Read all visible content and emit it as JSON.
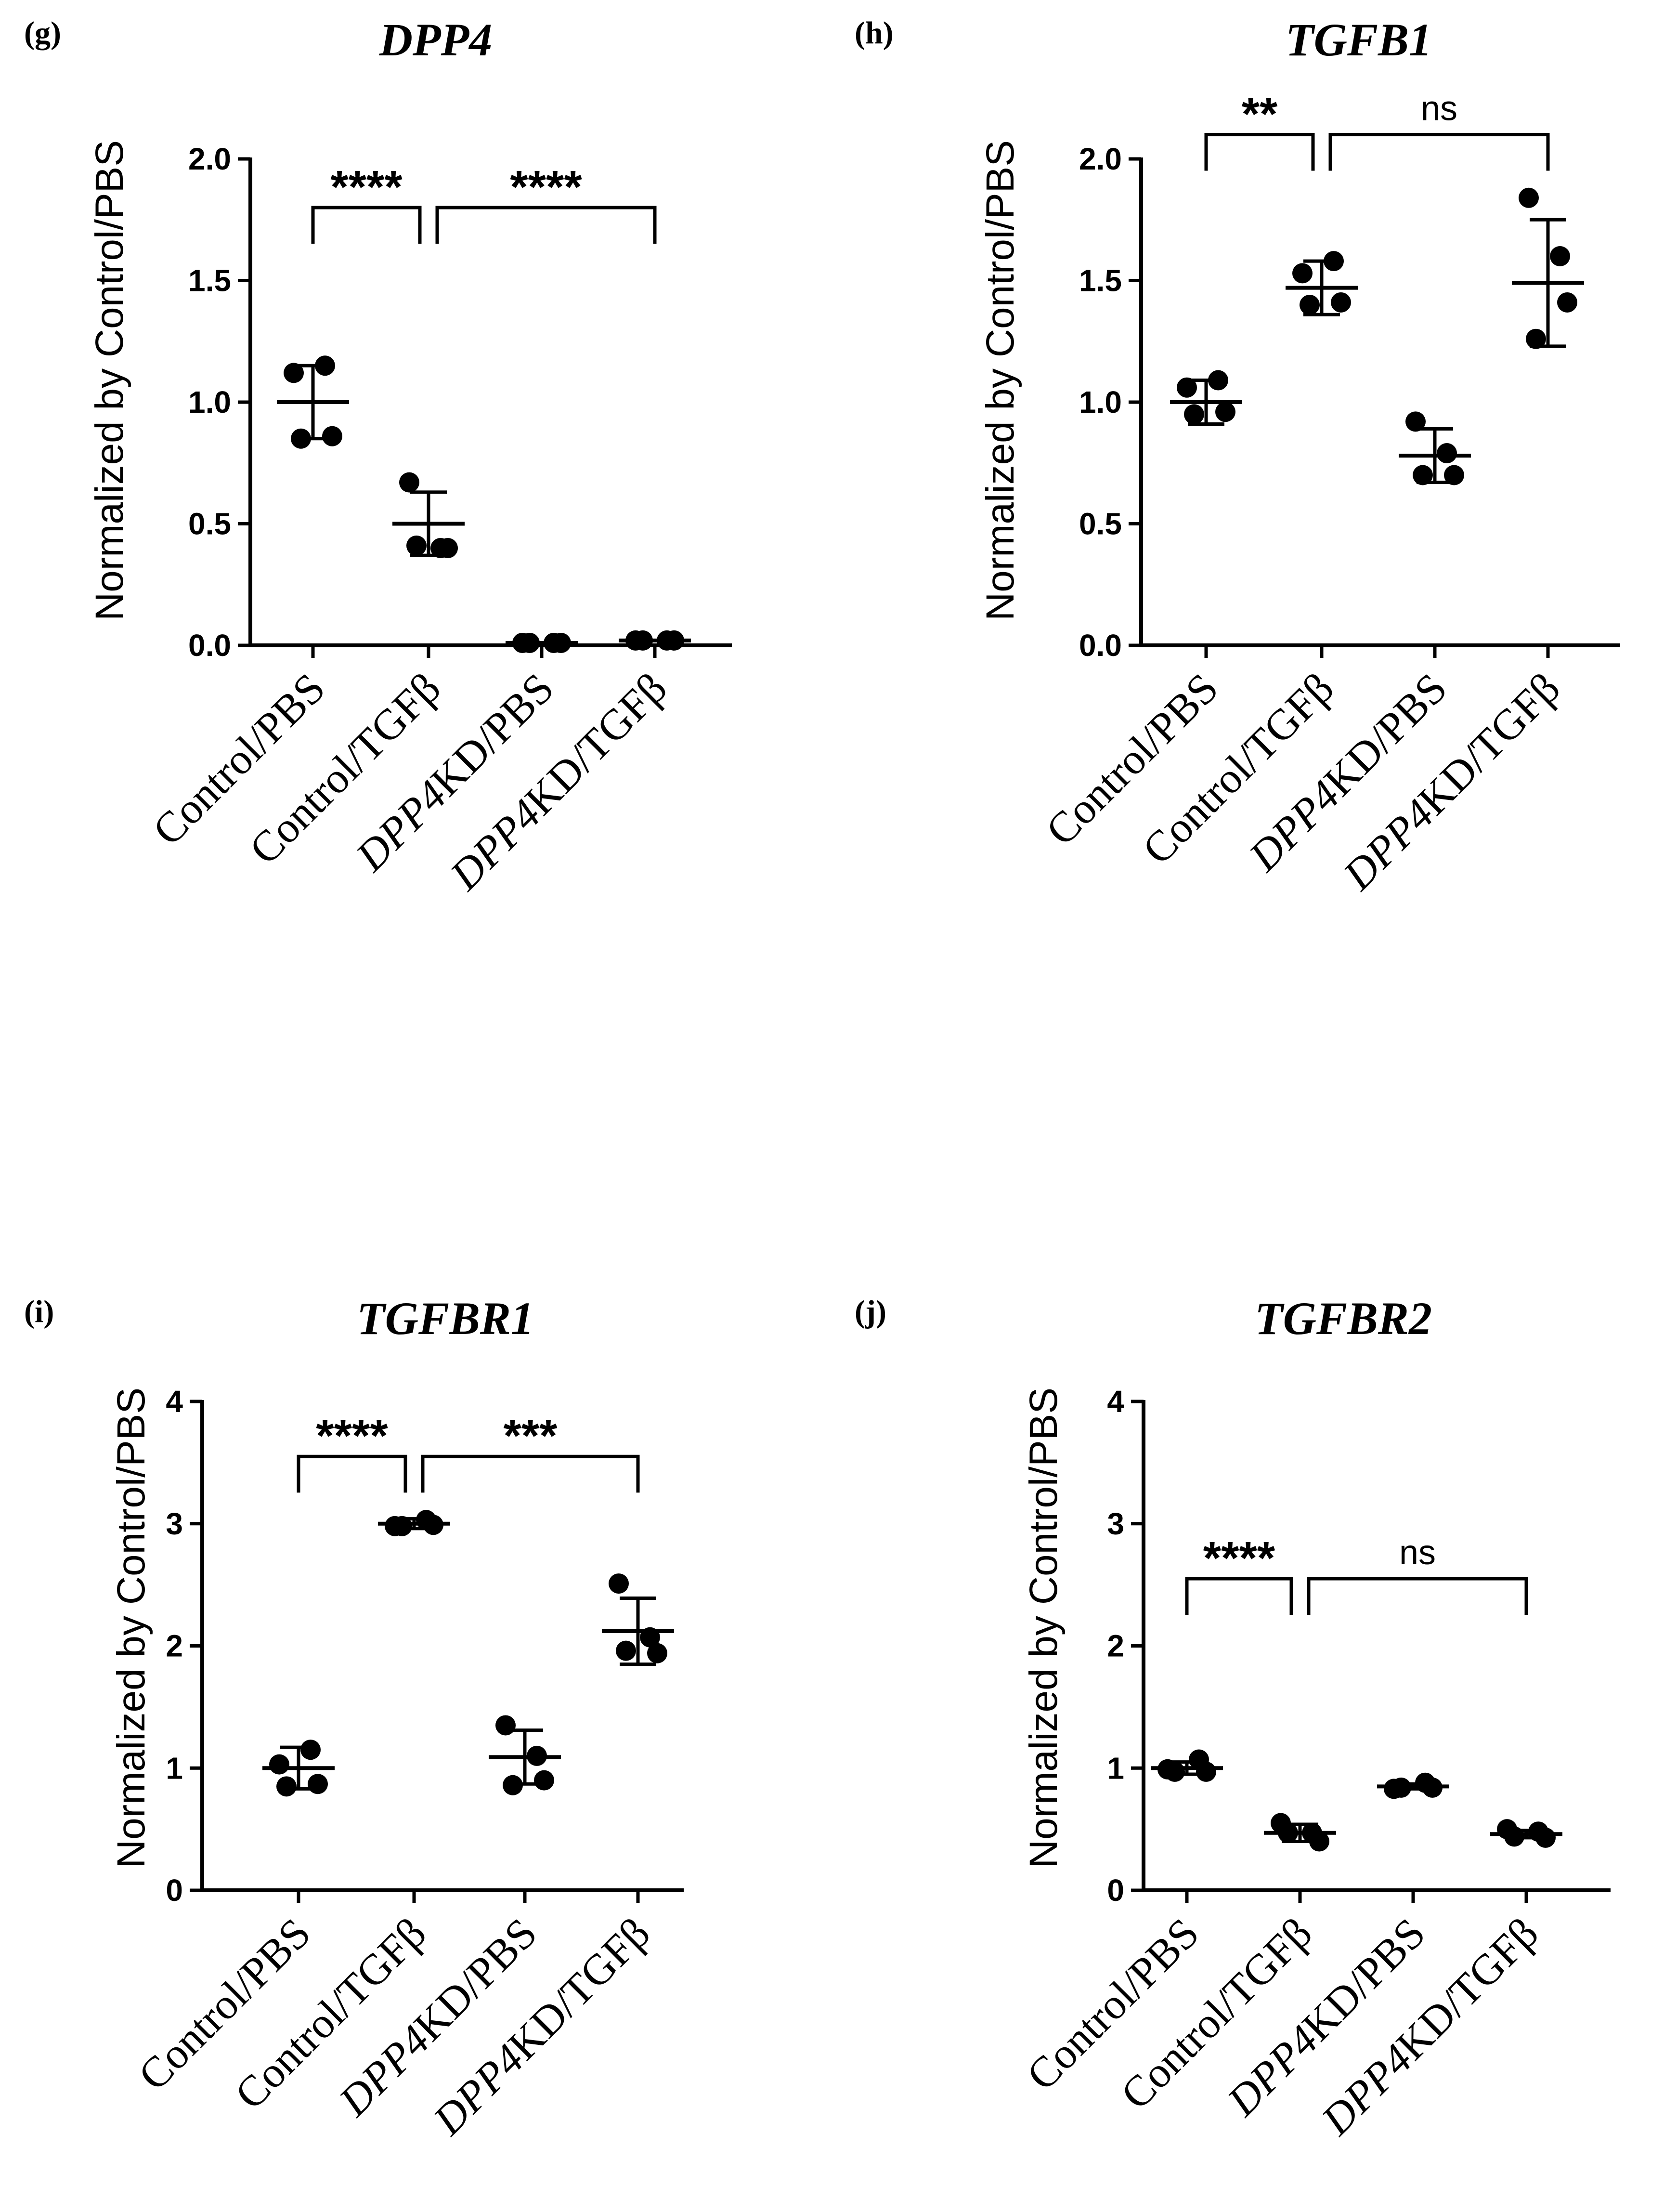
{
  "chart_data": [
    {
      "type": "scatter",
      "panel_label": "(g)",
      "title": "DPP4",
      "ylabel": "Normalized by Control/PBS",
      "ylim": [
        0,
        2.0
      ],
      "yticks": [
        "0.0",
        "0.5",
        "1.0",
        "1.5",
        "2.0"
      ],
      "yticks_values": [
        0,
        0.5,
        1.0,
        1.5,
        2.0
      ],
      "categories": [
        {
          "label": "Control/PBS",
          "italic_prefix": "",
          "rest": "Control/PBS"
        },
        {
          "label": "Control/TGFβ",
          "italic_prefix": "",
          "rest": "Control/TGFβ"
        },
        {
          "label": "DPP4KD/PBS",
          "italic_prefix": "DPP4",
          "rest": "KD/PBS"
        },
        {
          "label": "DPP4KD/TGFβ",
          "italic_prefix": "DPP4",
          "rest": "KD/TGFβ"
        }
      ],
      "groups": [
        {
          "points": [
            1.12,
            1.15,
            0.86,
            0.85
          ],
          "mean": 1.0,
          "sd": 0.15
        },
        {
          "points": [
            0.67,
            0.4,
            0.4,
            0.41
          ],
          "mean": 0.5,
          "sd": 0.13
        },
        {
          "points": [
            0.01,
            0.01,
            0.01,
            0.01
          ],
          "mean": 0.01,
          "sd": 0.0
        },
        {
          "points": [
            0.02,
            0.02,
            0.02,
            0.02
          ],
          "mean": 0.02,
          "sd": 0.0
        }
      ],
      "comparisons": [
        {
          "from": 0,
          "to": 1,
          "label": "****",
          "y": 1.8,
          "style": "star"
        },
        {
          "from": 1,
          "to": 3,
          "label": "****",
          "y": 1.8,
          "style": "star"
        }
      ]
    },
    {
      "type": "scatter",
      "panel_label": "(h)",
      "title": "TGFB1",
      "ylabel": "Normalized by Control/PBS",
      "ylim": [
        0,
        2.0
      ],
      "yticks": [
        "0.0",
        "0.5",
        "1.0",
        "1.5",
        "2.0"
      ],
      "yticks_values": [
        0,
        0.5,
        1.0,
        1.5,
        2.0
      ],
      "categories": [
        {
          "label": "Control/PBS",
          "italic_prefix": "",
          "rest": "Control/PBS"
        },
        {
          "label": "Control/TGFβ",
          "italic_prefix": "",
          "rest": "Control/TGFβ"
        },
        {
          "label": "DPP4KD/PBS",
          "italic_prefix": "DPP4",
          "rest": "KD/PBS"
        },
        {
          "label": "DPP4KD/TGFβ",
          "italic_prefix": "DPP4",
          "rest": "KD/TGFβ"
        }
      ],
      "groups": [
        {
          "points": [
            1.06,
            1.09,
            0.96,
            0.95
          ],
          "mean": 1.0,
          "sd": 0.09
        },
        {
          "points": [
            1.53,
            1.58,
            1.41,
            1.4
          ],
          "mean": 1.47,
          "sd": 0.11
        },
        {
          "points": [
            0.92,
            0.79,
            0.7,
            0.7
          ],
          "mean": 0.78,
          "sd": 0.11
        },
        {
          "points": [
            1.84,
            1.6,
            1.41,
            1.26
          ],
          "mean": 1.49,
          "sd": 0.26
        }
      ],
      "comparisons": [
        {
          "from": 0,
          "to": 1,
          "label": "**",
          "y": 2.1,
          "style": "star"
        },
        {
          "from": 1,
          "to": 3,
          "label": "ns",
          "y": 2.1,
          "style": "ns"
        }
      ]
    },
    {
      "type": "scatter",
      "panel_label": "(i)",
      "title": "TGFBR1",
      "ylabel": "Normalized by Control/PBS",
      "ylim": [
        0,
        4
      ],
      "yticks": [
        "0",
        "1",
        "2",
        "3",
        "4"
      ],
      "yticks_values": [
        0,
        1,
        2,
        3,
        4
      ],
      "categories": [
        {
          "label": "Control/PBS",
          "italic_prefix": "",
          "rest": "Control/PBS"
        },
        {
          "label": "Control/TGFβ",
          "italic_prefix": "",
          "rest": "Control/TGFβ"
        },
        {
          "label": "DPP4KD/PBS",
          "italic_prefix": "DPP4",
          "rest": "KD/PBS"
        },
        {
          "label": "DPP4KD/TGFβ",
          "italic_prefix": "DPP4",
          "rest": "KD/TGFβ"
        }
      ],
      "groups": [
        {
          "points": [
            1.03,
            1.15,
            0.87,
            0.85
          ],
          "mean": 1.0,
          "sd": 0.17
        },
        {
          "points": [
            2.98,
            3.03,
            2.99,
            2.98
          ],
          "mean": 3.0,
          "sd": 0.04
        },
        {
          "points": [
            1.35,
            1.1,
            0.9,
            0.86
          ],
          "mean": 1.09,
          "sd": 0.22
        },
        {
          "points": [
            2.51,
            2.07,
            1.94,
            1.96
          ],
          "mean": 2.12,
          "sd": 0.27
        }
      ],
      "comparisons": [
        {
          "from": 0,
          "to": 1,
          "label": "****",
          "y": 3.55,
          "style": "star"
        },
        {
          "from": 1,
          "to": 3,
          "label": "***",
          "y": 3.55,
          "style": "star"
        }
      ]
    },
    {
      "type": "scatter",
      "panel_label": "(j)",
      "title": "TGFBR2",
      "ylabel": "Normalized by Control/PBS",
      "ylim": [
        0,
        4
      ],
      "yticks": [
        "0",
        "1",
        "2",
        "3",
        "4"
      ],
      "yticks_values": [
        0,
        1,
        2,
        3,
        4
      ],
      "categories": [
        {
          "label": "Control/PBS",
          "italic_prefix": "",
          "rest": "Control/PBS"
        },
        {
          "label": "Control/TGFβ",
          "italic_prefix": "",
          "rest": "Control/TGFβ"
        },
        {
          "label": "DPP4KD/PBS",
          "italic_prefix": "DPP4",
          "rest": "KD/PBS"
        },
        {
          "label": "DPP4KD/TGFβ",
          "italic_prefix": "DPP4",
          "rest": "KD/TGFβ"
        }
      ],
      "groups": [
        {
          "points": [
            0.99,
            1.07,
            0.97,
            0.97
          ],
          "mean": 1.0,
          "sd": 0.05
        },
        {
          "points": [
            0.55,
            0.47,
            0.4,
            0.47
          ],
          "mean": 0.47,
          "sd": 0.07
        },
        {
          "points": [
            0.83,
            0.88,
            0.84,
            0.84
          ],
          "mean": 0.85,
          "sd": 0.02
        },
        {
          "points": [
            0.5,
            0.48,
            0.43,
            0.44
          ],
          "mean": 0.46,
          "sd": 0.03
        }
      ],
      "comparisons": [
        {
          "from": 0,
          "to": 1,
          "label": "****",
          "y": 2.55,
          "style": "star"
        },
        {
          "from": 1,
          "to": 3,
          "label": "ns",
          "y": 2.55,
          "style": "ns"
        }
      ]
    }
  ]
}
